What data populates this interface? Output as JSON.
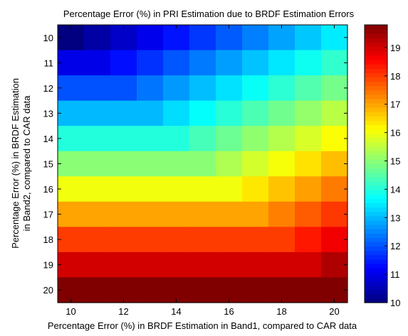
{
  "chart_data": {
    "type": "heatmap",
    "title": "Percentage Error (%) in PRI Estimation due to BRDF Estimation Errors",
    "xlabel": "Percentage Error (%) in BRDF Estimation in Band1, compared to CAR data",
    "ylabel_lines": [
      "Percentage Error (%) in BRDF Estimation",
      "in Band2, compared to CAR data"
    ],
    "x": [
      10,
      11,
      12,
      13,
      14,
      15,
      16,
      17,
      18,
      19,
      20
    ],
    "y": [
      10,
      11,
      12,
      13,
      14,
      15,
      16,
      17,
      18,
      19,
      20
    ],
    "xlim": [
      9.5,
      20.5
    ],
    "ylim": [
      9.5,
      20.5
    ],
    "y_direction": "reversed",
    "x_ticks": [
      10,
      12,
      14,
      16,
      18,
      20
    ],
    "y_ticks": [
      10,
      11,
      12,
      13,
      14,
      15,
      16,
      17,
      18,
      19,
      20
    ],
    "colormap": "jet",
    "colorbar": {
      "min": 10,
      "max": 19.8,
      "ticks": [
        10,
        11,
        12,
        13,
        14,
        15,
        16,
        17,
        18,
        19
      ]
    },
    "value_rule": "z = max(y_band2, 0.35*x_band1 + 0.65*y_band2)",
    "grid": false
  }
}
